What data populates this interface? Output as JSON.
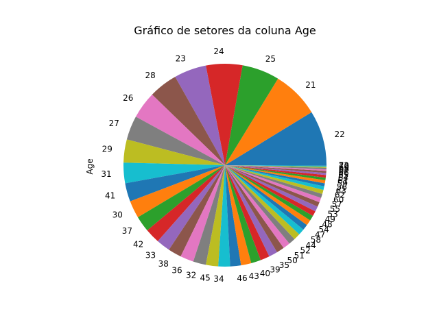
{
  "chart_data": {
    "type": "pie",
    "title": "Gráfico de setores da coluna Age",
    "ylabel": "Age",
    "xlabel": "",
    "start_angle_deg": 0,
    "direction": "counterclockwise",
    "palette": [
      "#1f77b4",
      "#ff7f0e",
      "#2ca02c",
      "#d62728",
      "#9467bd",
      "#8c564b",
      "#e377c2",
      "#7f7f7f",
      "#bcbd22",
      "#17becf"
    ],
    "categories": [
      "22",
      "21",
      "25",
      "24",
      "23",
      "28",
      "26",
      "27",
      "29",
      "31",
      "41",
      "30",
      "37",
      "42",
      "33",
      "38",
      "36",
      "32",
      "45",
      "34",
      "46",
      "43",
      "40",
      "39",
      "35",
      "50",
      "51",
      "52",
      "44",
      "58",
      "47",
      "54",
      "48",
      "49",
      "53",
      "55",
      "57",
      "60",
      "62",
      "63",
      "56",
      "59",
      "61",
      "64",
      "65",
      "66",
      "67",
      "68",
      "69",
      "70",
      "72"
    ],
    "values": [
      10.7,
      9.2,
      7.3,
      7.1,
      6.3,
      5.6,
      5.3,
      4.7,
      4.5,
      4.0,
      3.6,
      3.4,
      3.1,
      2.9,
      2.7,
      2.6,
      2.6,
      2.5,
      2.4,
      2.3,
      2.1,
      2.0,
      1.9,
      1.8,
      1.7,
      1.5,
      1.4,
      1.3,
      1.3,
      1.2,
      1.1,
      1.1,
      1.0,
      1.0,
      1.0,
      0.9,
      0.9,
      0.8,
      0.8,
      0.7,
      0.6,
      0.6,
      0.5,
      0.5,
      0.4,
      0.4,
      0.3,
      0.3,
      0.2,
      0.2,
      0.1
    ]
  }
}
